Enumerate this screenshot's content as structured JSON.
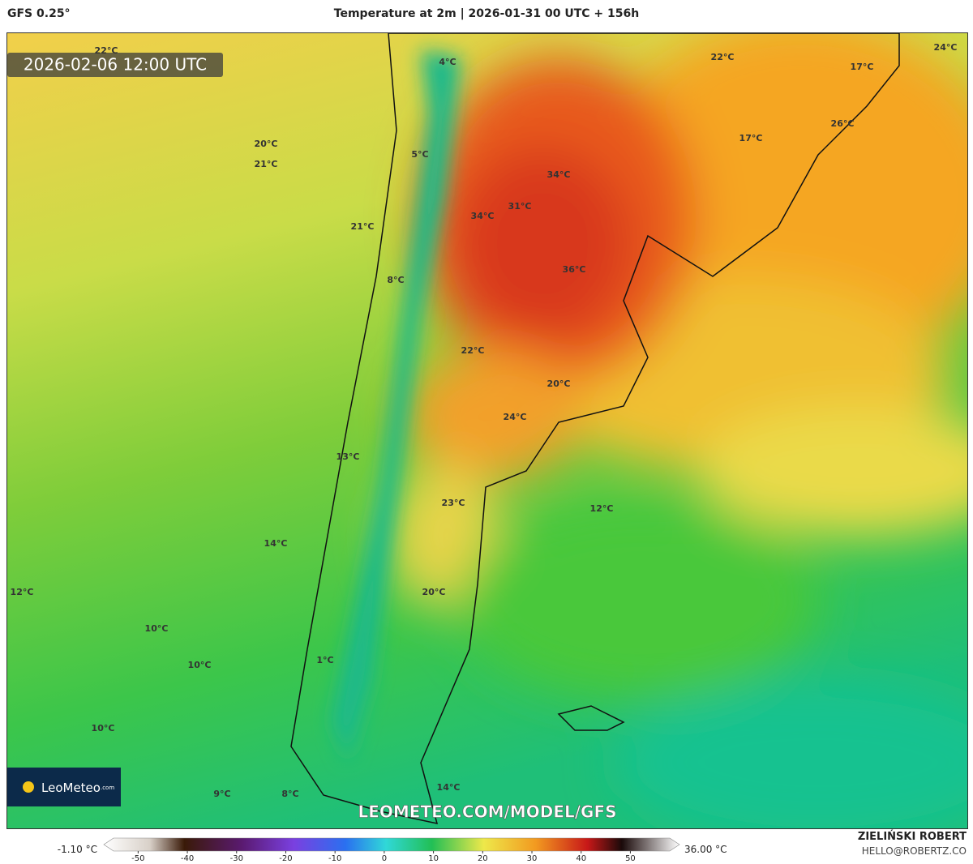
{
  "header": {
    "model": "GFS 0.25°",
    "title": "Temperature at 2m | 2026-01-31 00 UTC + 156h"
  },
  "map": {
    "valid_time": "2026-02-06 12:00 UTC",
    "watermark": "LEOMETEO.COM/MODEL/GFS",
    "logo": "LeoMeteo",
    "logo_suffix": ".com",
    "labels": [
      "22°C",
      "4°C",
      "22°C",
      "17°C",
      "24°C",
      "20°C",
      "21°C",
      "5°C",
      "17°C",
      "26°C",
      "34°C",
      "31°C",
      "34°C",
      "21°C",
      "8°C",
      "36°C",
      "22°C",
      "20°C",
      "24°C",
      "13°C",
      "23°C",
      "12°C",
      "14°C",
      "12°C",
      "20°C",
      "10°C",
      "10°C",
      "1°C",
      "10°C",
      "9°C",
      "8°C",
      "14°C"
    ]
  },
  "colorbar": {
    "min_label": "-1.10 °C",
    "max_label": "36.00 °C",
    "range": [
      -55,
      58
    ],
    "ticks": [
      -50,
      -40,
      -30,
      -20,
      -10,
      0,
      10,
      20,
      30,
      40,
      50
    ]
  },
  "credit": {
    "author": "ZIELIŃSKI ROBERT",
    "email": "HELLO@ROBERTZ.CO"
  }
}
